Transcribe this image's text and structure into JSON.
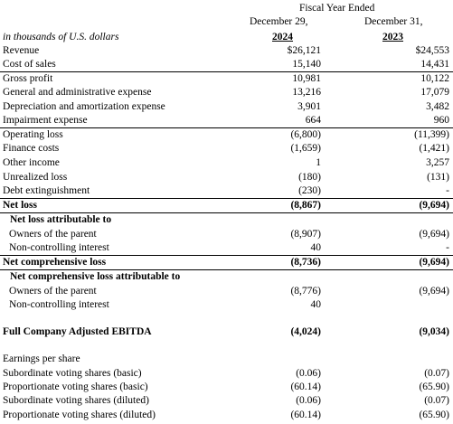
{
  "header": {
    "period": "Fiscal Year Ended",
    "col1_date": "December 29,",
    "col2_date": "December 31,",
    "units": "in thousands of U.S. dollars",
    "col1_year": "2024",
    "col2_year": "2023"
  },
  "table": {
    "rows": [
      [
        "Revenue",
        "$26,121",
        "$24,553"
      ],
      [
        "Cost of sales",
        "15,140",
        "14,431"
      ],
      [
        "Gross profit",
        "10,981",
        "10,122"
      ],
      [
        "General and administrative expense",
        "13,216",
        "17,079"
      ],
      [
        "Depreciation and amortization expense",
        "3,901",
        "3,482"
      ],
      [
        "Impairment expense",
        "664",
        "960"
      ],
      [
        "Operating loss",
        "(6,800)",
        "(11,399)"
      ],
      [
        "Finance costs",
        "(1,659)",
        "(1,421)"
      ],
      [
        "Other income",
        "1",
        "3,257"
      ],
      [
        "Unrealized loss",
        "(180)",
        "(131)"
      ],
      [
        "Debt extinguishment",
        "(230)",
        "-"
      ],
      [
        "Net loss",
        "(8,867)",
        "(9,694)"
      ],
      [
        "Net loss attributable to"
      ],
      [
        "Owners of the parent",
        "(8,907)",
        "(9,694)"
      ],
      [
        "Non-controlling interest",
        "40",
        "-"
      ],
      [
        "Net comprehensive loss",
        "(8,736)",
        "(9,694)"
      ],
      [
        "Net comprehensive loss attributable to"
      ],
      [
        "Owners of the parent",
        "(8,776)",
        "(9,694)"
      ],
      [
        "Non-controlling interest",
        "40"
      ],
      [
        "Full Company Adjusted EBITDA",
        "(4,024)",
        "(9,034)"
      ],
      [
        "Earnings per share"
      ],
      [
        "Subordinate voting shares (basic)",
        "(0.06)",
        "(0.07)"
      ],
      [
        "Proportionate voting shares (basic)",
        "(60.14)",
        "(65.90)"
      ],
      [
        "Subordinate voting shares (diluted)",
        "(0.06)",
        "(0.07)"
      ],
      [
        "Proportionate voting shares (diluted)",
        "(60.14)",
        "(65.90)"
      ]
    ]
  }
}
